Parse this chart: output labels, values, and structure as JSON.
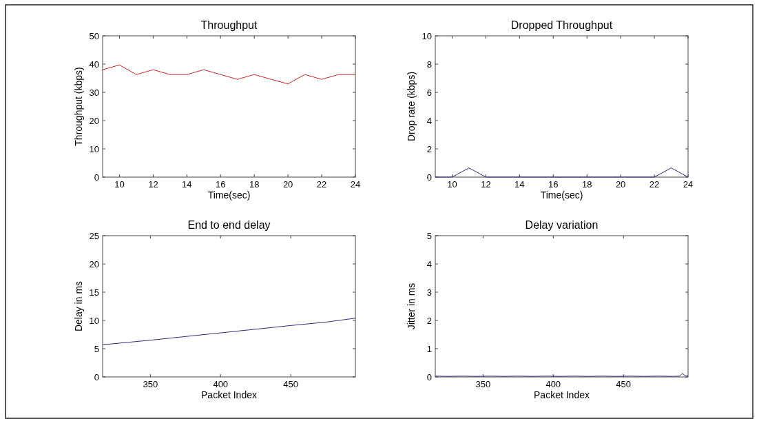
{
  "chart_data": [
    {
      "type": "line",
      "title": "Throughput",
      "xlabel": "Time(sec)",
      "ylabel": "Throughput (kbps)",
      "x": [
        9,
        10,
        11,
        12,
        13,
        14,
        15,
        16,
        17,
        18,
        19,
        20,
        21,
        22,
        23,
        24
      ],
      "values": [
        38,
        39.7,
        36.3,
        38,
        36.3,
        36.3,
        38,
        36.3,
        34.6,
        36.3,
        34.6,
        33,
        36.3,
        34.6,
        36.3,
        36.3
      ],
      "color": "#cc2222",
      "xlim": [
        9,
        24
      ],
      "ylim": [
        0,
        50
      ],
      "xticks": [
        10,
        12,
        14,
        16,
        18,
        20,
        22,
        24
      ],
      "yticks": [
        0,
        10,
        20,
        30,
        40,
        50
      ]
    },
    {
      "type": "line",
      "title": "Dropped Throughput",
      "xlabel": "Time(sec)",
      "ylabel": "Drop rate (kbps)",
      "x": [
        9,
        10,
        11,
        12,
        13,
        14,
        15,
        16,
        17,
        18,
        19,
        20,
        21,
        22,
        23,
        24
      ],
      "values": [
        0,
        0,
        0.65,
        0,
        0,
        0,
        0,
        0,
        0,
        0,
        0,
        0,
        0,
        0,
        0.65,
        0
      ],
      "color": "#2a2a8a",
      "xlim": [
        9,
        24
      ],
      "ylim": [
        0,
        10
      ],
      "xticks": [
        10,
        12,
        14,
        16,
        18,
        20,
        22,
        24
      ],
      "yticks": [
        0,
        2,
        4,
        6,
        8,
        10
      ]
    },
    {
      "type": "line",
      "title": "End to end delay",
      "xlabel": "Packet Index",
      "ylabel": "Delay in ms",
      "x": [
        316,
        350,
        400,
        450,
        475,
        496
      ],
      "values": [
        5.7,
        6.5,
        7.8,
        9.1,
        9.7,
        10.4
      ],
      "color": "#2a2a8a",
      "xlim": [
        316,
        496
      ],
      "ylim": [
        0,
        25
      ],
      "xticks": [
        350,
        400,
        450
      ],
      "yticks": [
        0,
        5,
        10,
        15,
        20,
        25
      ]
    },
    {
      "type": "line",
      "title": "Delay variation",
      "xlabel": "Packet Index",
      "ylabel": "Jitter in ms",
      "x": [
        316,
        325,
        335,
        345,
        355,
        365,
        375,
        385,
        395,
        405,
        415,
        425,
        435,
        445,
        455,
        465,
        475,
        485,
        490,
        492,
        494,
        496
      ],
      "values": [
        0.03,
        0.02,
        0.03,
        0.02,
        0.03,
        0.02,
        0.03,
        0.02,
        0.03,
        0.02,
        0.03,
        0.02,
        0.03,
        0.02,
        0.03,
        0.02,
        0.03,
        0.02,
        0.03,
        0.12,
        0.04,
        0.04
      ],
      "color": "#2a2a8a",
      "xlim": [
        316,
        496
      ],
      "ylim": [
        0,
        5
      ],
      "xticks": [
        350,
        400,
        450
      ],
      "yticks": [
        0,
        1,
        2,
        3,
        4,
        5
      ]
    }
  ]
}
